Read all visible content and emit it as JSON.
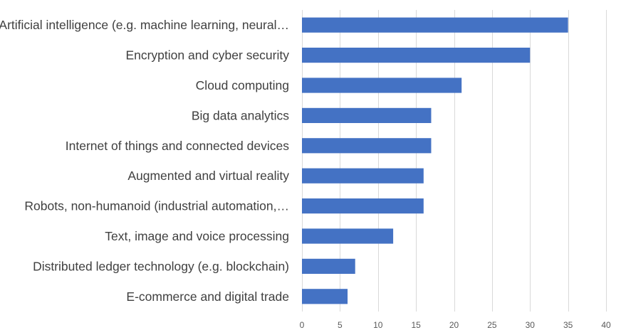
{
  "chart_data": {
    "type": "bar",
    "orientation": "horizontal",
    "title": "",
    "xlabel": "",
    "ylabel": "",
    "categories": [
      "Artificial intelligence (e.g. machine learning, neural…",
      "Encryption and cyber security",
      "Cloud computing",
      "Big data analytics",
      "Internet of things and connected devices",
      "Augmented and virtual reality",
      "Robots, non-humanoid (industrial automation,…",
      "Text, image and voice processing",
      "Distributed ledger technology (e.g. blockchain)",
      "E-commerce and digital trade"
    ],
    "values": [
      35,
      30,
      21,
      17,
      17,
      16,
      16,
      12,
      7,
      6
    ],
    "xlim": [
      0,
      40
    ],
    "ticks": [
      0,
      5,
      10,
      15,
      20,
      25,
      30,
      35,
      40
    ],
    "tick_labels": [
      "0",
      "5",
      "10",
      "15",
      "20",
      "25",
      "30",
      "35",
      "40"
    ],
    "grid": true,
    "legend": "none",
    "bar_color": "#4472c4"
  }
}
